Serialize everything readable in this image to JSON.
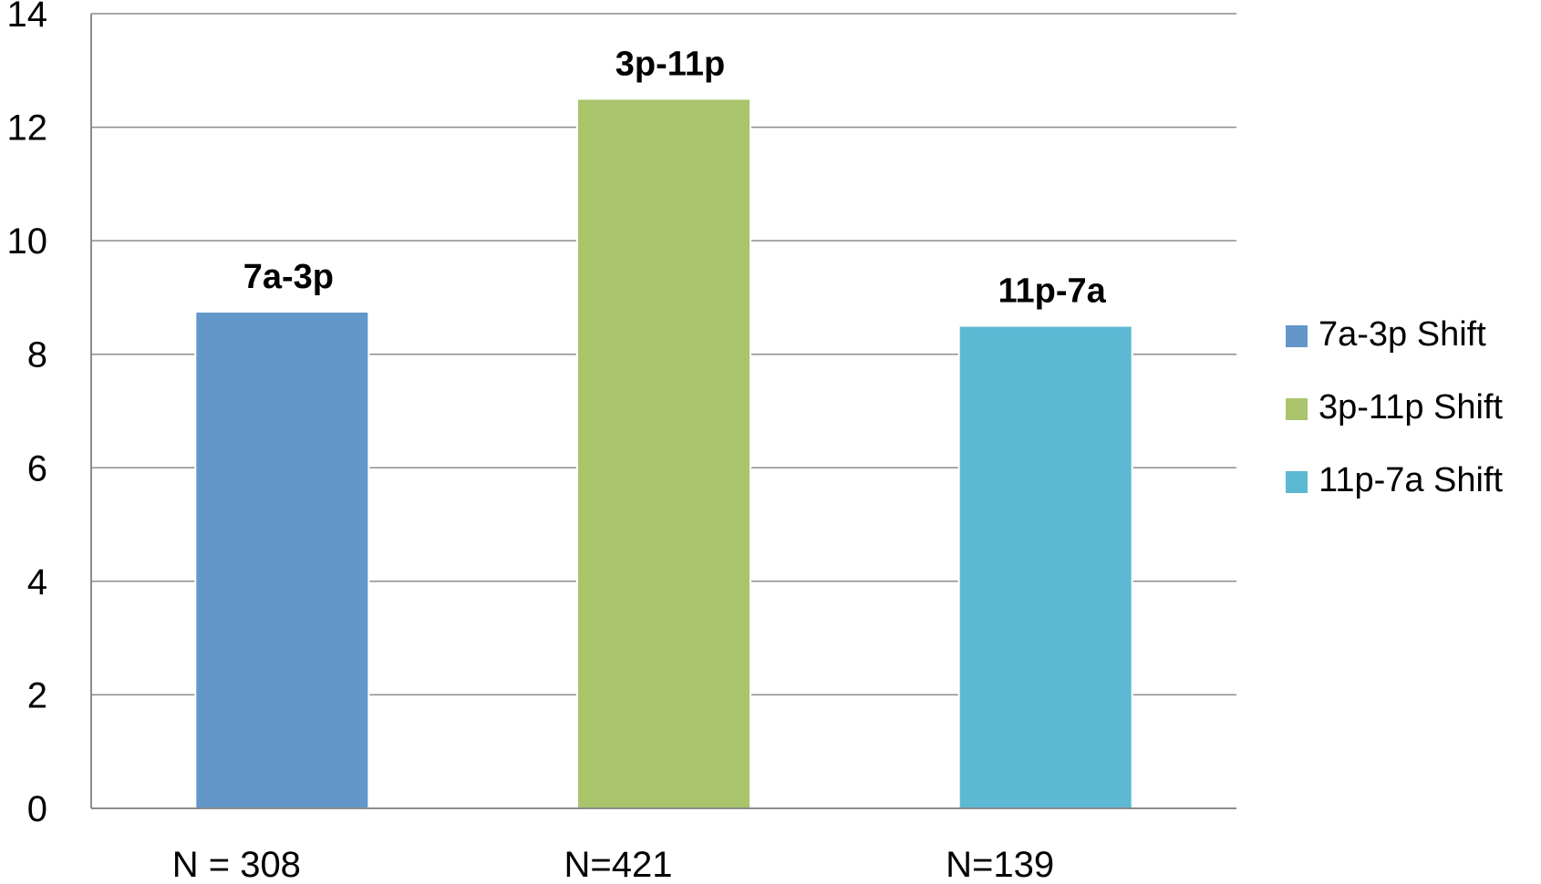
{
  "chart_data": {
    "type": "bar",
    "title": "",
    "xlabel": "",
    "ylabel": "",
    "ylim": [
      0,
      14
    ],
    "yticks": [
      0,
      2,
      4,
      6,
      8,
      10,
      12,
      14
    ],
    "grid": true,
    "legend_position": "right",
    "categories": [
      "N = 308",
      "N=421",
      "N=139"
    ],
    "series": [
      {
        "name": "7a-3p Shift",
        "value": 8.75,
        "data_label": "7a-3p",
        "color": "#6396C9"
      },
      {
        "name": "3p-11p Shift",
        "value": 12.5,
        "data_label": "3p-11p",
        "color": "#A9C46B"
      },
      {
        "name": "11p-7a Shift",
        "value": 8.5,
        "data_label": "11p-7a",
        "color": "#5CB8D3"
      }
    ]
  }
}
